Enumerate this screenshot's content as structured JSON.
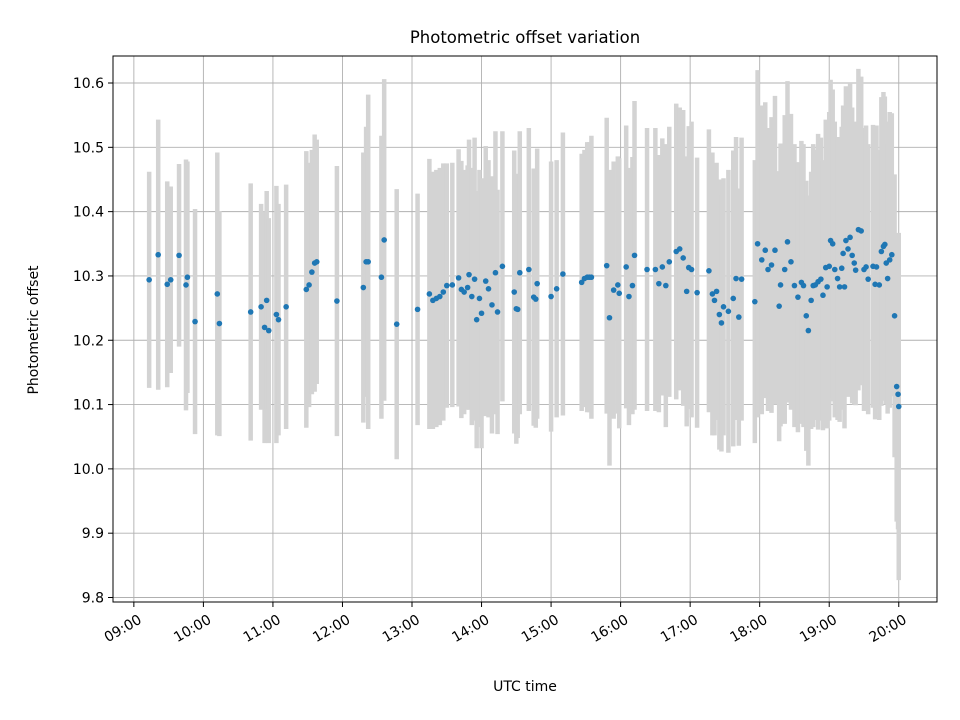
{
  "chart_data": {
    "type": "scatter",
    "title": "Photometric offset variation",
    "xlabel": "UTC time",
    "ylabel": "Photometric offset",
    "x_unit": "hours UTC",
    "xlim": [
      8.7,
      20.55
    ],
    "ylim": [
      9.793,
      10.642
    ],
    "x_ticks": [
      {
        "value": 9,
        "label": "09:00"
      },
      {
        "value": 10,
        "label": "10:00"
      },
      {
        "value": 11,
        "label": "11:00"
      },
      {
        "value": 12,
        "label": "12:00"
      },
      {
        "value": 13,
        "label": "13:00"
      },
      {
        "value": 14,
        "label": "14:00"
      },
      {
        "value": 15,
        "label": "15:00"
      },
      {
        "value": 16,
        "label": "16:00"
      },
      {
        "value": 17,
        "label": "17:00"
      },
      {
        "value": 18,
        "label": "18:00"
      },
      {
        "value": 19,
        "label": "19:00"
      },
      {
        "value": 20,
        "label": "20:00"
      }
    ],
    "y_ticks": [
      {
        "value": 9.8,
        "label": "9.8"
      },
      {
        "value": 9.9,
        "label": "9.9"
      },
      {
        "value": 10.0,
        "label": "10.0"
      },
      {
        "value": 10.1,
        "label": "10.1"
      },
      {
        "value": 10.2,
        "label": "10.2"
      },
      {
        "value": 10.3,
        "label": "10.3"
      },
      {
        "value": 10.4,
        "label": "10.4"
      },
      {
        "value": 10.5,
        "label": "10.5"
      },
      {
        "value": 10.6,
        "label": "10.6"
      }
    ],
    "grid": true,
    "point_color": "#1f77b4",
    "errorbar_color": "#d3d3d3",
    "points": [
      [
        9.22,
        10.294,
        0.168
      ],
      [
        9.35,
        10.333,
        0.21
      ],
      [
        9.48,
        10.287,
        0.16
      ],
      [
        9.53,
        10.294,
        0.145
      ],
      [
        9.65,
        10.332,
        0.142
      ],
      [
        9.75,
        10.286,
        0.195
      ],
      [
        9.77,
        10.298,
        0.18
      ],
      [
        9.88,
        10.229,
        0.175
      ],
      [
        10.2,
        10.272,
        0.22
      ],
      [
        10.23,
        10.226,
        0.175
      ],
      [
        10.68,
        10.244,
        0.2
      ],
      [
        10.83,
        10.252,
        0.16
      ],
      [
        10.88,
        10.22,
        0.18
      ],
      [
        10.91,
        10.262,
        0.17
      ],
      [
        10.94,
        10.215,
        0.175
      ],
      [
        11.05,
        10.24,
        0.2
      ],
      [
        11.08,
        10.232,
        0.18
      ],
      [
        11.19,
        10.252,
        0.19
      ],
      [
        11.48,
        10.279,
        0.215
      ],
      [
        11.52,
        10.286,
        0.19
      ],
      [
        11.56,
        10.306,
        0.19
      ],
      [
        11.6,
        10.32,
        0.2
      ],
      [
        11.63,
        10.322,
        0.19
      ],
      [
        11.92,
        10.261,
        0.21
      ],
      [
        12.3,
        10.282,
        0.21
      ],
      [
        12.34,
        10.322,
        0.21
      ],
      [
        12.37,
        10.322,
        0.26
      ],
      [
        12.56,
        10.298,
        0.22
      ],
      [
        12.6,
        10.356,
        0.25
      ],
      [
        12.78,
        10.225,
        0.21
      ],
      [
        13.08,
        10.248,
        0.18
      ],
      [
        13.25,
        10.272,
        0.21
      ],
      [
        13.3,
        10.262,
        0.2
      ],
      [
        13.35,
        10.265,
        0.2
      ],
      [
        13.4,
        10.268,
        0.2
      ],
      [
        13.45,
        10.275,
        0.2
      ],
      [
        13.5,
        10.285,
        0.19
      ],
      [
        13.58,
        10.286,
        0.19
      ],
      [
        13.67,
        10.297,
        0.2
      ],
      [
        13.71,
        10.279,
        0.2
      ],
      [
        13.75,
        10.275,
        0.19
      ],
      [
        13.8,
        10.282,
        0.19
      ],
      [
        13.82,
        10.302,
        0.21
      ],
      [
        13.86,
        10.268,
        0.2
      ],
      [
        13.9,
        10.295,
        0.22
      ],
      [
        13.93,
        10.232,
        0.2
      ],
      [
        13.97,
        10.265,
        0.2
      ],
      [
        14.0,
        10.242,
        0.21
      ],
      [
        14.06,
        10.292,
        0.21
      ],
      [
        14.1,
        10.28,
        0.2
      ],
      [
        14.15,
        10.255,
        0.2
      ],
      [
        14.2,
        10.305,
        0.22
      ],
      [
        14.23,
        10.244,
        0.19
      ],
      [
        14.3,
        10.315,
        0.21
      ],
      [
        14.47,
        10.275,
        0.22
      ],
      [
        14.5,
        10.249,
        0.21
      ],
      [
        14.52,
        10.248,
        0.2
      ],
      [
        14.55,
        10.305,
        0.22
      ],
      [
        14.68,
        10.31,
        0.22
      ],
      [
        14.75,
        10.267,
        0.2
      ],
      [
        14.78,
        10.264,
        0.2
      ],
      [
        14.8,
        10.288,
        0.21
      ],
      [
        15.0,
        10.268,
        0.21
      ],
      [
        15.08,
        10.28,
        0.2
      ],
      [
        15.17,
        10.303,
        0.22
      ],
      [
        15.44,
        10.29,
        0.2
      ],
      [
        15.48,
        10.296,
        0.2
      ],
      [
        15.52,
        10.298,
        0.21
      ],
      [
        15.55,
        10.298,
        0.21
      ],
      [
        15.58,
        10.298,
        0.22
      ],
      [
        15.8,
        10.316,
        0.23
      ],
      [
        15.84,
        10.235,
        0.23
      ],
      [
        15.9,
        10.278,
        0.2
      ],
      [
        15.96,
        10.286,
        0.2
      ],
      [
        15.98,
        10.273,
        0.21
      ],
      [
        16.08,
        10.314,
        0.22
      ],
      [
        16.12,
        10.268,
        0.2
      ],
      [
        16.17,
        10.285,
        0.2
      ],
      [
        16.2,
        10.332,
        0.24
      ],
      [
        16.38,
        10.31,
        0.22
      ],
      [
        16.5,
        10.31,
        0.22
      ],
      [
        16.55,
        10.288,
        0.2
      ],
      [
        16.6,
        10.314,
        0.2
      ],
      [
        16.65,
        10.285,
        0.22
      ],
      [
        16.7,
        10.322,
        0.21
      ],
      [
        16.8,
        10.338,
        0.23
      ],
      [
        16.85,
        10.342,
        0.22
      ],
      [
        16.9,
        10.328,
        0.23
      ],
      [
        16.95,
        10.276,
        0.21
      ],
      [
        16.98,
        10.313,
        0.22
      ],
      [
        17.02,
        10.31,
        0.23
      ],
      [
        17.1,
        10.274,
        0.21
      ],
      [
        17.27,
        10.308,
        0.22
      ],
      [
        17.32,
        10.272,
        0.22
      ],
      [
        17.35,
        10.262,
        0.21
      ],
      [
        17.38,
        10.276,
        0.2
      ],
      [
        17.42,
        10.24,
        0.21
      ],
      [
        17.45,
        10.227,
        0.2
      ],
      [
        17.48,
        10.252,
        0.2
      ],
      [
        17.55,
        10.245,
        0.22
      ],
      [
        17.62,
        10.265,
        0.23
      ],
      [
        17.66,
        10.296,
        0.22
      ],
      [
        17.7,
        10.236,
        0.2
      ],
      [
        17.74,
        10.295,
        0.22
      ],
      [
        17.93,
        10.26,
        0.22
      ],
      [
        17.97,
        10.35,
        0.27
      ],
      [
        18.03,
        10.325,
        0.24
      ],
      [
        18.08,
        10.34,
        0.23
      ],
      [
        18.12,
        10.31,
        0.22
      ],
      [
        18.17,
        10.317,
        0.23
      ],
      [
        18.22,
        10.34,
        0.24
      ],
      [
        18.28,
        10.253,
        0.21
      ],
      [
        18.3,
        10.286,
        0.22
      ],
      [
        18.36,
        10.31,
        0.24
      ],
      [
        18.4,
        10.353,
        0.25
      ],
      [
        18.45,
        10.322,
        0.23
      ],
      [
        18.5,
        10.285,
        0.22
      ],
      [
        18.55,
        10.267,
        0.21
      ],
      [
        18.6,
        10.29,
        0.22
      ],
      [
        18.63,
        10.285,
        0.22
      ],
      [
        18.67,
        10.238,
        0.21
      ],
      [
        18.7,
        10.215,
        0.21
      ],
      [
        18.74,
        10.262,
        0.2
      ],
      [
        18.77,
        10.285,
        0.22
      ],
      [
        18.8,
        10.286,
        0.21
      ],
      [
        18.84,
        10.291,
        0.23
      ],
      [
        18.88,
        10.295,
        0.22
      ],
      [
        18.91,
        10.27,
        0.21
      ],
      [
        18.95,
        10.313,
        0.23
      ],
      [
        18.97,
        10.283,
        0.22
      ],
      [
        19.0,
        10.315,
        0.24
      ],
      [
        19.02,
        10.355,
        0.25
      ],
      [
        19.05,
        10.35,
        0.24
      ],
      [
        19.08,
        10.31,
        0.23
      ],
      [
        19.12,
        10.296,
        0.22
      ],
      [
        19.15,
        10.283,
        0.21
      ],
      [
        19.18,
        10.312,
        0.22
      ],
      [
        19.2,
        10.335,
        0.23
      ],
      [
        19.22,
        10.283,
        0.22
      ],
      [
        19.24,
        10.355,
        0.24
      ],
      [
        19.27,
        10.342,
        0.23
      ],
      [
        19.3,
        10.36,
        0.24
      ],
      [
        19.33,
        10.332,
        0.23
      ],
      [
        19.36,
        10.32,
        0.22
      ],
      [
        19.38,
        10.309,
        0.21
      ],
      [
        19.42,
        10.372,
        0.25
      ],
      [
        19.46,
        10.37,
        0.24
      ],
      [
        19.5,
        10.31,
        0.22
      ],
      [
        19.53,
        10.314,
        0.22
      ],
      [
        19.56,
        10.295,
        0.21
      ],
      [
        19.63,
        10.315,
        0.22
      ],
      [
        19.66,
        10.287,
        0.21
      ],
      [
        19.68,
        10.314,
        0.22
      ],
      [
        19.72,
        10.286,
        0.21
      ],
      [
        19.75,
        10.338,
        0.24
      ],
      [
        19.78,
        10.346,
        0.24
      ],
      [
        19.8,
        10.349,
        0.23
      ],
      [
        19.82,
        10.32,
        0.22
      ],
      [
        19.84,
        10.296,
        0.21
      ],
      [
        19.87,
        10.325,
        0.23
      ],
      [
        19.9,
        10.333,
        0.22
      ],
      [
        19.94,
        10.238,
        0.22
      ],
      [
        19.97,
        10.128,
        0.21
      ],
      [
        19.99,
        10.116,
        0.21
      ],
      [
        20.0,
        10.097,
        0.27
      ]
    ]
  }
}
